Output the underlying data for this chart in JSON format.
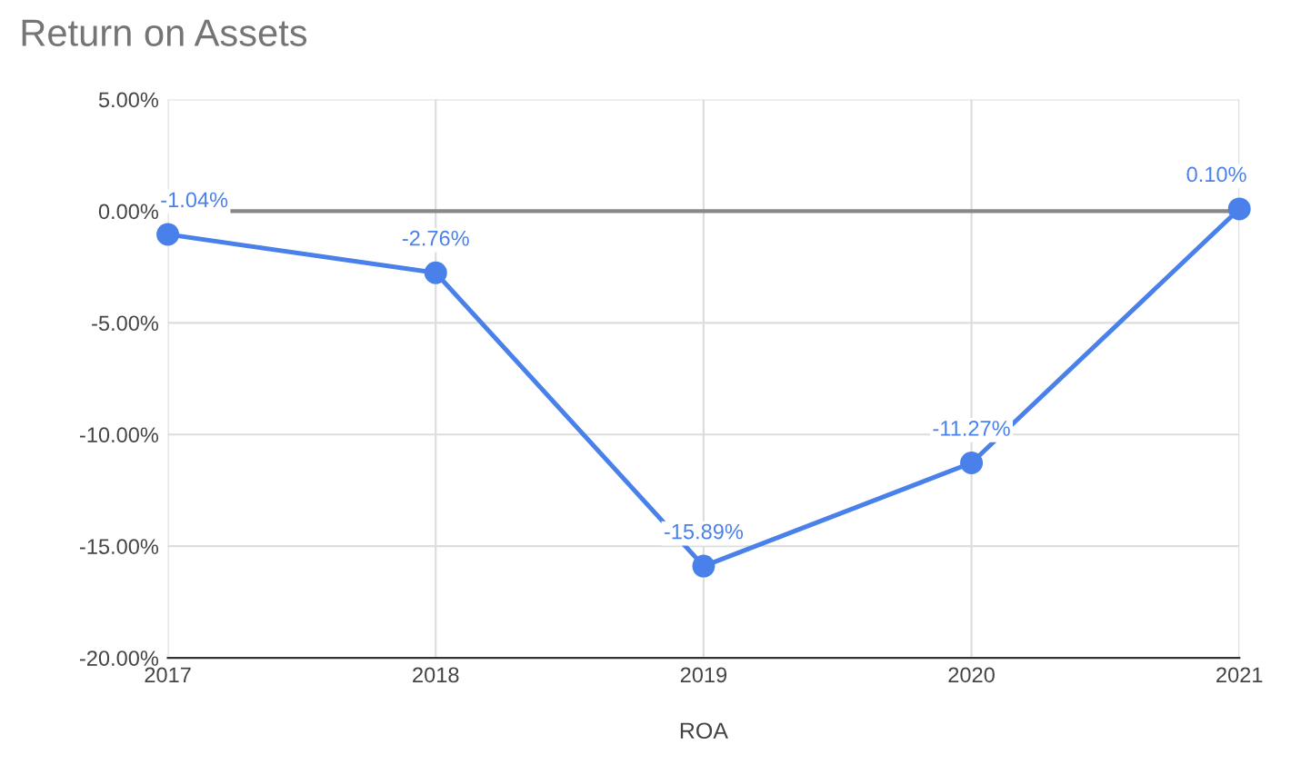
{
  "chart_data": {
    "type": "line",
    "title": "Return on Assets",
    "xlabel": "ROA",
    "x": [
      2017,
      2018,
      2019,
      2020,
      2021
    ],
    "series": [
      {
        "color": "#4a80ea",
        "values": [
          -1.04,
          -2.76,
          -15.89,
          -11.27,
          0.1
        ],
        "value_labels": [
          "-1.04%",
          "-2.76%",
          "-15.89%",
          "-11.27%",
          "0.10%"
        ]
      }
    ],
    "xlim": [
      2017,
      2021
    ],
    "xticks": [
      2017,
      2018,
      2019,
      2020,
      2021
    ],
    "ylim": [
      -20,
      5
    ],
    "yticks": [
      {
        "value": -20,
        "label": "-20.00%"
      },
      {
        "value": -15,
        "label": "-15.00%"
      },
      {
        "value": -10,
        "label": "-10.00%"
      },
      {
        "value": -5,
        "label": "-5.00%"
      },
      {
        "value": 0,
        "label": "0.00%"
      },
      {
        "value": 5,
        "label": "5.00%"
      }
    ],
    "ref_lines": [
      {
        "axis": "y",
        "value": 0,
        "color": "#888888"
      }
    ],
    "grid": true,
    "marker": "circle",
    "line_style": "solid",
    "legend": false
  }
}
